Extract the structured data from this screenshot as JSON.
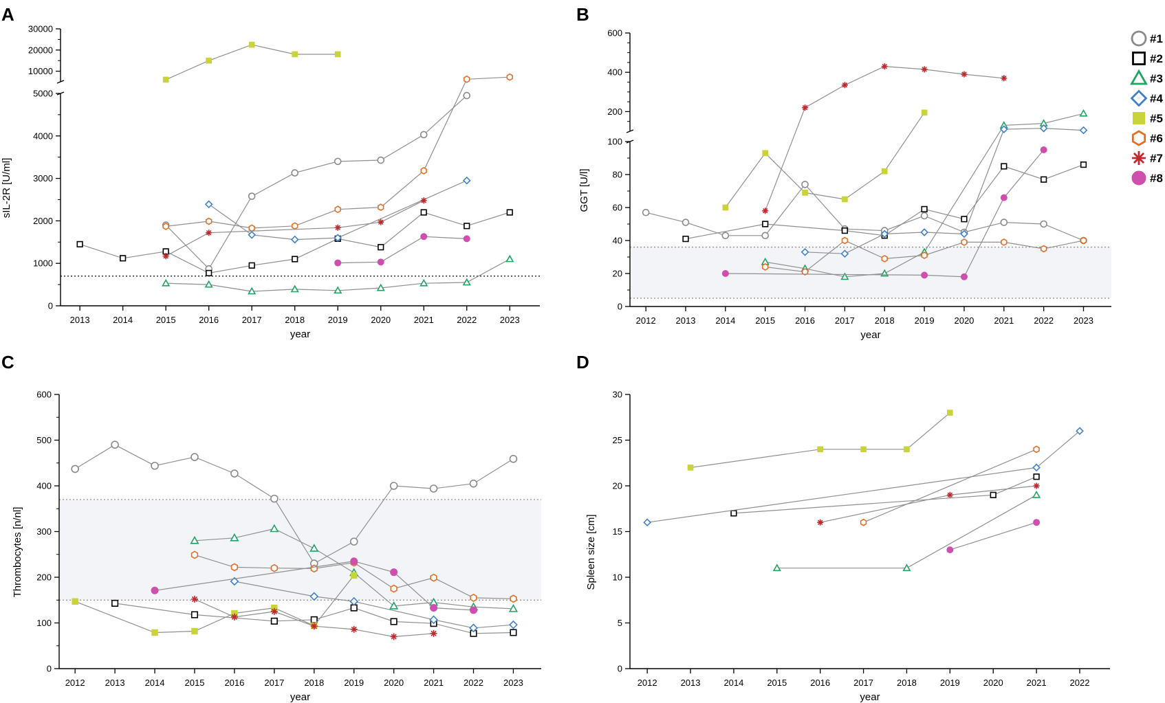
{
  "legend": [
    {
      "label": "#1",
      "marker": "circle",
      "color": "#8a8a8a"
    },
    {
      "label": "#2",
      "marker": "square",
      "color": "#000000"
    },
    {
      "label": "#3",
      "marker": "triangle",
      "color": "#1fa463"
    },
    {
      "label": "#4",
      "marker": "diamond",
      "color": "#3f80c8"
    },
    {
      "label": "#5",
      "marker": "filled-square",
      "color": "#c9d33a"
    },
    {
      "label": "#6",
      "marker": "hexagon",
      "color": "#e0702a"
    },
    {
      "label": "#7",
      "marker": "asterisk",
      "color": "#c0282d"
    },
    {
      "label": "#8",
      "marker": "filled-circle",
      "color": "#cf4fae"
    }
  ],
  "chart_data": [
    {
      "panel": "A",
      "type": "line",
      "xlabel": "year",
      "ylabel": "sIL-2R [U/ml]",
      "xlim": [
        2012.55,
        2023.7
      ],
      "x_ticks": [
        "2013",
        "2014",
        "2015",
        "2016",
        "2017",
        "2018",
        "2019",
        "2020",
        "2021",
        "2022",
        "2023"
      ],
      "y_lower_range": [
        0,
        5000
      ],
      "y_lower_ticks": [
        "0",
        "1000",
        "2000",
        "3000",
        "4000",
        "5000"
      ],
      "y_upper_range": [
        5000,
        30000
      ],
      "y_upper_ticks": [
        "10000",
        "20000",
        "30000"
      ],
      "reference_line": 700,
      "series": [
        {
          "name": "#1",
          "x": [
            2015,
            2016,
            2017,
            2018,
            2019,
            2020,
            2021,
            2022
          ],
          "y": [
            1900,
            870,
            2580,
            3130,
            3400,
            3430,
            4030,
            4950
          ]
        },
        {
          "name": "#2",
          "x": [
            2013,
            2014,
            2015,
            2016,
            2017,
            2018,
            2019,
            2020,
            2021,
            2022,
            2023
          ],
          "y": [
            1450,
            1120,
            1280,
            770,
            950,
            1100,
            1580,
            1380,
            2200,
            1880,
            2200
          ]
        },
        {
          "name": "#3",
          "x": [
            2015,
            2016,
            2017,
            2018,
            2019,
            2020,
            2021,
            2022,
            2023
          ],
          "y": [
            530,
            500,
            340,
            390,
            360,
            420,
            530,
            550,
            1100
          ]
        },
        {
          "name": "#4",
          "x": [
            2016,
            2017,
            2018,
            2019,
            2022
          ],
          "y": [
            2390,
            1670,
            1560,
            1600,
            2950
          ]
        },
        {
          "name": "#5",
          "x": [
            2015,
            2016,
            2017,
            2018,
            2019
          ],
          "y": [
            6000,
            15000,
            22500,
            18000,
            18000
          ]
        },
        {
          "name": "#6",
          "x": [
            2015,
            2016,
            2017,
            2018,
            2019,
            2020,
            2021,
            2022,
            2023
          ],
          "y": [
            1870,
            1990,
            1830,
            1880,
            2270,
            2320,
            3180,
            6200,
            7200
          ]
        },
        {
          "name": "#7",
          "x": [
            2015,
            2016,
            2019,
            2020,
            2021
          ],
          "y": [
            1170,
            1720,
            1840,
            1970,
            2480
          ]
        },
        {
          "name": "#8",
          "x": [
            2019,
            2020,
            2021,
            2022
          ],
          "y": [
            1010,
            1030,
            1630,
            1580
          ]
        }
      ]
    },
    {
      "panel": "B",
      "type": "line",
      "xlabel": "year",
      "ylabel": "GGT [U/l]",
      "xlim": [
        2011.6,
        2023.7
      ],
      "x_ticks": [
        "2012",
        "2013",
        "2014",
        "2015",
        "2016",
        "2017",
        "2018",
        "2019",
        "2020",
        "2021",
        "2022",
        "2023"
      ],
      "y_lower_range": [
        0,
        100
      ],
      "y_lower_ticks": [
        "0",
        "20",
        "40",
        "60",
        "80",
        "100"
      ],
      "y_upper_range": [
        100,
        600
      ],
      "y_upper_ticks": [
        "200",
        "400",
        "600"
      ],
      "reference_band": [
        5,
        36
      ],
      "series": [
        {
          "name": "#1",
          "x": [
            2012,
            2013,
            2014,
            2015,
            2016,
            2017,
            2018,
            2019,
            2020,
            2021,
            2022,
            2023
          ],
          "y": [
            57,
            51,
            43,
            43,
            74,
            47,
            46,
            55,
            45,
            51,
            50,
            40
          ]
        },
        {
          "name": "#2",
          "x": [
            2013,
            2015,
            2017,
            2018,
            2019,
            2020,
            2021,
            2022,
            2023
          ],
          "y": [
            41,
            50,
            46,
            43,
            59,
            53,
            85,
            77,
            86
          ]
        },
        {
          "name": "#3",
          "x": [
            2015,
            2016,
            2017,
            2018,
            2019,
            2021,
            2022,
            2023
          ],
          "y": [
            27,
            23,
            18,
            20,
            33,
            130,
            140,
            190
          ]
        },
        {
          "name": "#4",
          "x": [
            2016,
            2017,
            2018,
            2019,
            2020,
            2021,
            2022,
            2023
          ],
          "y": [
            33,
            32,
            44,
            45,
            44,
            110,
            115,
            105
          ]
        },
        {
          "name": "#5",
          "x": [
            2014,
            2015,
            2016,
            2017,
            2018,
            2019
          ],
          "y": [
            60,
            93,
            69,
            65,
            82,
            195
          ]
        },
        {
          "name": "#6",
          "x": [
            2015,
            2016,
            2017,
            2018,
            2019,
            2020,
            2021,
            2022,
            2023
          ],
          "y": [
            24,
            21,
            40,
            29,
            31,
            39,
            39,
            35,
            40
          ]
        },
        {
          "name": "#7",
          "x": [
            2015,
            2016,
            2017,
            2018,
            2019,
            2020,
            2021
          ],
          "y": [
            58,
            220,
            335,
            430,
            415,
            390,
            370
          ]
        },
        {
          "name": "#8",
          "x": [
            2014,
            2019,
            2020,
            2021,
            2022
          ],
          "y": [
            20,
            19,
            18,
            66,
            95
          ]
        }
      ]
    },
    {
      "panel": "C",
      "type": "line",
      "xlabel": "year",
      "ylabel": "Thrombocytes [n/nl]",
      "xlim": [
        2011.6,
        2023.7
      ],
      "x_ticks": [
        "2012",
        "2013",
        "2014",
        "2015",
        "2016",
        "2017",
        "2018",
        "2019",
        "2020",
        "2021",
        "2022",
        "2023"
      ],
      "ylim": [
        0,
        600
      ],
      "y_ticks": [
        "0",
        "100",
        "200",
        "300",
        "400",
        "500",
        "600"
      ],
      "reference_band": [
        150,
        370
      ],
      "series": [
        {
          "name": "#1",
          "x": [
            2012,
            2013,
            2014,
            2015,
            2016,
            2017,
            2018,
            2019,
            2020,
            2021,
            2022,
            2023
          ],
          "y": [
            437,
            490,
            444,
            463,
            427,
            372,
            230,
            278,
            400,
            394,
            405,
            459
          ]
        },
        {
          "name": "#2",
          "x": [
            2013,
            2015,
            2017,
            2018,
            2019,
            2020,
            2021,
            2022,
            2023
          ],
          "y": [
            143,
            118,
            104,
            107,
            133,
            103,
            99,
            77,
            79
          ]
        },
        {
          "name": "#3",
          "x": [
            2015,
            2016,
            2017,
            2018,
            2019,
            2020,
            2021,
            2022,
            2023
          ],
          "y": [
            280,
            286,
            306,
            263,
            210,
            137,
            145,
            135,
            131
          ]
        },
        {
          "name": "#4",
          "x": [
            2016,
            2018,
            2019,
            2021,
            2022,
            2023
          ],
          "y": [
            191,
            158,
            147,
            107,
            89,
            96
          ]
        },
        {
          "name": "#5",
          "x": [
            2012,
            2014,
            2015,
            2016,
            2017,
            2018,
            2019
          ],
          "y": [
            147,
            79,
            82,
            121,
            133,
            94,
            204
          ]
        },
        {
          "name": "#6",
          "x": [
            2015,
            2016,
            2017,
            2018,
            2019,
            2020,
            2021,
            2022,
            2023
          ],
          "y": [
            249,
            222,
            220,
            219,
            232,
            175,
            199,
            155,
            153
          ]
        },
        {
          "name": "#7",
          "x": [
            2015,
            2016,
            2017,
            2018,
            2019,
            2020,
            2021
          ],
          "y": [
            152,
            113,
            125,
            93,
            86,
            70,
            77
          ]
        },
        {
          "name": "#8",
          "x": [
            2014,
            2019,
            2020,
            2021,
            2022
          ],
          "y": [
            171,
            235,
            211,
            133,
            128
          ]
        }
      ]
    },
    {
      "panel": "D",
      "type": "line",
      "xlabel": "year",
      "ylabel": "Spleen size [cm]",
      "xlim": [
        2011.6,
        2022.7
      ],
      "x_ticks": [
        "2012",
        "2013",
        "2014",
        "2015",
        "2016",
        "2017",
        "2018",
        "2019",
        "2020",
        "2021",
        "2022"
      ],
      "ylim": [
        0,
        30
      ],
      "y_ticks": [
        "0",
        "5",
        "10",
        "15",
        "20",
        "25",
        "30"
      ],
      "series": [
        {
          "name": "#2",
          "x": [
            2014,
            2020,
            2021
          ],
          "y": [
            17,
            19,
            21
          ]
        },
        {
          "name": "#3",
          "x": [
            2015,
            2018,
            2021
          ],
          "y": [
            11,
            11,
            19
          ]
        },
        {
          "name": "#4",
          "x": [
            2012,
            2021,
            2022
          ],
          "y": [
            16,
            22,
            26
          ]
        },
        {
          "name": "#5",
          "x": [
            2013,
            2016,
            2017,
            2018,
            2019
          ],
          "y": [
            22,
            24,
            24,
            24,
            28
          ]
        },
        {
          "name": "#6",
          "x": [
            2017,
            2021
          ],
          "y": [
            16,
            24
          ]
        },
        {
          "name": "#7",
          "x": [
            2016,
            2019,
            2021
          ],
          "y": [
            16,
            19,
            20
          ]
        },
        {
          "name": "#8",
          "x": [
            2019,
            2021
          ],
          "y": [
            13,
            16
          ]
        }
      ]
    }
  ]
}
